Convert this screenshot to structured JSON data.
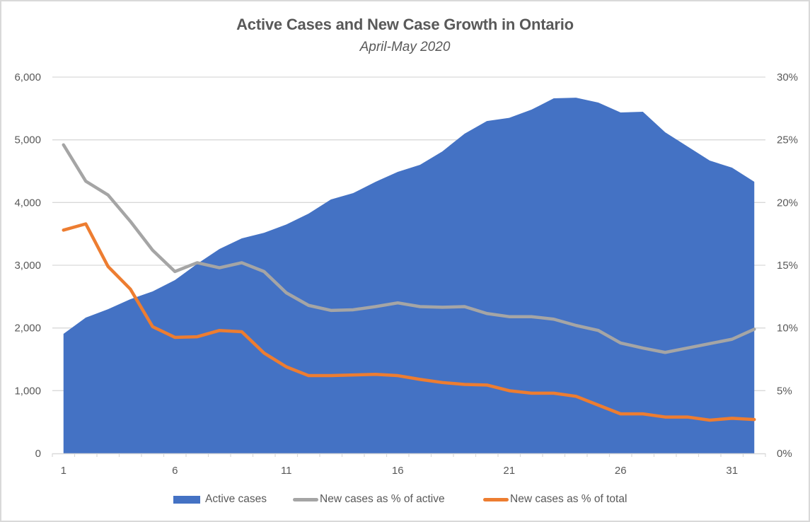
{
  "chart_data": {
    "type": "area",
    "title": "Active Cases and New Case Growth in Ontario",
    "subtitle": "April-May 2020",
    "xlabel": "",
    "ylabel": "",
    "y2label": "",
    "x": [
      1,
      2,
      3,
      4,
      5,
      6,
      7,
      8,
      9,
      10,
      11,
      12,
      13,
      14,
      15,
      16,
      17,
      18,
      19,
      20,
      21,
      22,
      23,
      24,
      25,
      26,
      27,
      28,
      29,
      30,
      31,
      32
    ],
    "x_tick_labels": [
      "1",
      "6",
      "11",
      "16",
      "21",
      "26",
      "31"
    ],
    "x_tick_values": [
      1,
      6,
      11,
      16,
      21,
      26,
      31
    ],
    "ylim": [
      0,
      6000
    ],
    "y_ticks": [
      0,
      1000,
      2000,
      3000,
      4000,
      5000,
      6000
    ],
    "y_tick_labels": [
      "0",
      "1,000",
      "2,000",
      "3,000",
      "4,000",
      "5,000",
      "6,000"
    ],
    "y2lim": [
      0,
      30
    ],
    "y2_ticks": [
      0,
      5,
      10,
      15,
      20,
      25,
      30
    ],
    "y2_tick_labels": [
      "0%",
      "5%",
      "10%",
      "15%",
      "20%",
      "25%",
      "30%"
    ],
    "grid": true,
    "legend_position": "bottom",
    "series": [
      {
        "name": "Active cases",
        "type": "area",
        "axis": "left",
        "color": "#4472c4",
        "values": [
          1906,
          2165,
          2300,
          2458,
          2583,
          2763,
          3022,
          3259,
          3428,
          3518,
          3650,
          3823,
          4049,
          4150,
          4330,
          4489,
          4601,
          4815,
          5098,
          5300,
          5350,
          5481,
          5661,
          5672,
          5594,
          5436,
          5447,
          5120,
          4895,
          4669,
          4556,
          4331
        ]
      },
      {
        "name": "New cases as % of active",
        "type": "line",
        "axis": "right",
        "color": "#a5a5a5",
        "values": [
          24.6,
          21.7,
          20.6,
          18.5,
          16.2,
          14.5,
          15.2,
          14.8,
          15.2,
          14.5,
          12.8,
          11.8,
          11.4,
          11.45,
          11.7,
          12.0,
          11.7,
          11.65,
          11.7,
          11.15,
          10.9,
          10.9,
          10.7,
          10.2,
          9.8,
          8.8,
          8.4,
          8.05,
          8.4,
          8.75,
          9.1,
          9.9
        ]
      },
      {
        "name": "New cases as % of total",
        "type": "line",
        "axis": "right",
        "color": "#ed7d31",
        "values": [
          17.8,
          18.3,
          14.9,
          13.1,
          10.1,
          9.25,
          9.3,
          9.8,
          9.7,
          8.0,
          6.9,
          6.2,
          6.2,
          6.25,
          6.3,
          6.2,
          5.9,
          5.65,
          5.5,
          5.45,
          5.0,
          4.8,
          4.8,
          4.55,
          3.85,
          3.15,
          3.15,
          2.9,
          2.9,
          2.65,
          2.8,
          2.7
        ]
      }
    ]
  },
  "legend": {
    "items": [
      {
        "label": "Active cases"
      },
      {
        "label": "New cases as % of active"
      },
      {
        "label": "New cases as % of total"
      }
    ]
  }
}
